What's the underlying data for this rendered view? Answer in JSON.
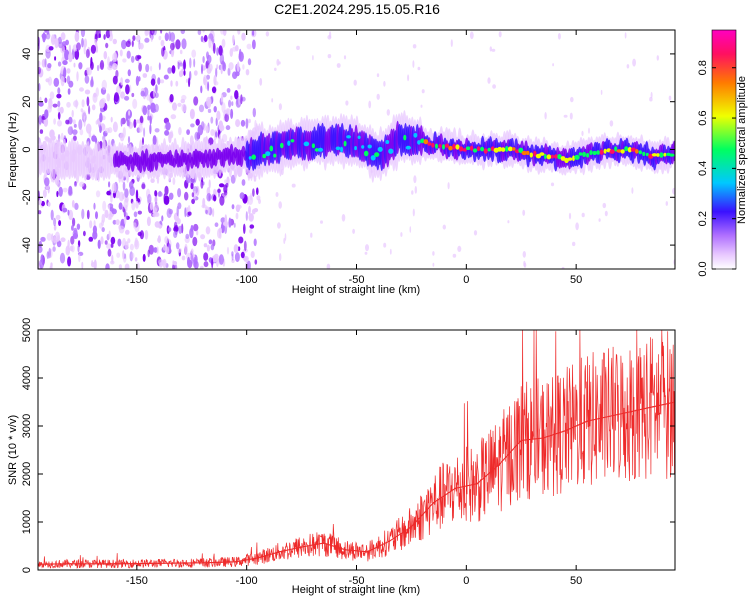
{
  "title": "C2E1.2024.295.15.05.R16",
  "colors": {
    "snr_line": "#ee2a2a",
    "frame": "#000000",
    "colormap": [
      "#ffffff",
      "#e8c8ff",
      "#b070ff",
      "#7a00ee",
      "#3a10ff",
      "#00c8ff",
      "#00ff60",
      "#f0ff00",
      "#ff7a00",
      "#ff1060",
      "#ff00c0"
    ]
  },
  "chart_data": [
    {
      "id": "spectrogram",
      "type": "heatmap",
      "xlabel": "Height of straight line (km)",
      "ylabel": "Frequency (Hz)",
      "xlim": [
        -195,
        95
      ],
      "ylim": [
        -50,
        50
      ],
      "xticks": [
        -150,
        -100,
        -50,
        0,
        50
      ],
      "yticks": [
        -40,
        -20,
        0,
        20,
        40
      ],
      "colorbar": {
        "label": "Normalized spectral amplitude",
        "range": [
          0,
          0.95
        ],
        "ticks": [
          0.0,
          0.2,
          0.4,
          0.6,
          0.8
        ]
      },
      "ridge": [
        {
          "x": -195,
          "y": -4
        },
        {
          "x": -150,
          "y": -5
        },
        {
          "x": -120,
          "y": -4
        },
        {
          "x": -100,
          "y": -2
        },
        {
          "x": -80,
          "y": 2
        },
        {
          "x": -60,
          "y": 4
        },
        {
          "x": -50,
          "y": 3
        },
        {
          "x": -40,
          "y": -3
        },
        {
          "x": -30,
          "y": 5
        },
        {
          "x": -20,
          "y": 3
        },
        {
          "x": 0,
          "y": 0
        },
        {
          "x": 20,
          "y": 0
        },
        {
          "x": 30,
          "y": -2
        },
        {
          "x": 45,
          "y": -4
        },
        {
          "x": 60,
          "y": -1
        },
        {
          "x": 75,
          "y": 0
        },
        {
          "x": 85,
          "y": -3
        },
        {
          "x": 95,
          "y": -2
        }
      ]
    },
    {
      "id": "snr",
      "type": "line",
      "xlabel": "Height of straight line (km)",
      "ylabel": "SNR (10 * v/v)",
      "xlim": [
        -195,
        95
      ],
      "ylim": [
        0,
        5000
      ],
      "xticks": [
        -150,
        -100,
        -50,
        0,
        50
      ],
      "yticks": [
        0,
        1000,
        2000,
        3000,
        4000,
        5000
      ],
      "series": [
        {
          "points": [
            {
              "x": -195,
              "y": 120
            },
            {
              "x": -180,
              "y": 130
            },
            {
              "x": -160,
              "y": 130
            },
            {
              "x": -140,
              "y": 140
            },
            {
              "x": -120,
              "y": 150
            },
            {
              "x": -105,
              "y": 170
            },
            {
              "x": -95,
              "y": 250
            },
            {
              "x": -85,
              "y": 380
            },
            {
              "x": -75,
              "y": 480
            },
            {
              "x": -65,
              "y": 560
            },
            {
              "x": -55,
              "y": 420
            },
            {
              "x": -45,
              "y": 380
            },
            {
              "x": -35,
              "y": 600
            },
            {
              "x": -25,
              "y": 900
            },
            {
              "x": -15,
              "y": 1400
            },
            {
              "x": -5,
              "y": 1700
            },
            {
              "x": 5,
              "y": 1800
            },
            {
              "x": 15,
              "y": 2200
            },
            {
              "x": 25,
              "y": 2700
            },
            {
              "x": 35,
              "y": 2750
            },
            {
              "x": 45,
              "y": 2900
            },
            {
              "x": 55,
              "y": 3100
            },
            {
              "x": 65,
              "y": 3200
            },
            {
              "x": 75,
              "y": 3300
            },
            {
              "x": 85,
              "y": 3400
            },
            {
              "x": 95,
              "y": 3500
            }
          ]
        }
      ]
    }
  ]
}
